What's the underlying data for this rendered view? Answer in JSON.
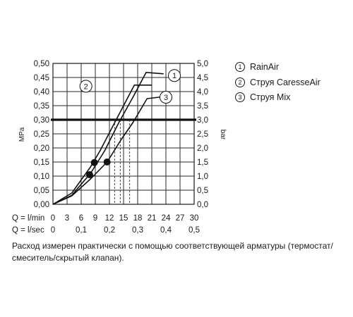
{
  "chart_data": {
    "type": "line",
    "y_left": {
      "unit": "MPa",
      "ticks": [
        "0,00",
        "0,05",
        "0,10",
        "0,15",
        "0,20",
        "0,25",
        "0,30",
        "0,35",
        "0,40",
        "0,45",
        "0,50"
      ],
      "range": [
        0,
        0.5
      ]
    },
    "y_right": {
      "unit": "bar",
      "ticks": [
        "0,0",
        "0,5",
        "1,0",
        "1,5",
        "2,0",
        "2,5",
        "3,0",
        "3,5",
        "4,0",
        "4,5",
        "5,0"
      ],
      "range": [
        0,
        5
      ]
    },
    "x": {
      "range": [
        0,
        30
      ],
      "rows": [
        {
          "label": "Q = l/min",
          "ticks": [
            "0",
            "3",
            "6",
            "9",
            "12",
            "15",
            "18",
            "21",
            "24",
            "27",
            "30"
          ]
        },
        {
          "label": "Q = l/sec",
          "ticks": [
            "0",
            "0,1",
            "0,2",
            "0,3",
            "0,4",
            "0,5"
          ]
        }
      ]
    },
    "reference_pressure_mpa": 0.3,
    "series": [
      {
        "id": "1",
        "name": "RainAir",
        "x": [
          0,
          4,
          8,
          11,
          14,
          17,
          19.8,
          23.5
        ],
        "y": [
          0,
          0.032,
          0.11,
          0.19,
          0.29,
          0.38,
          0.468,
          0.463
        ]
      },
      {
        "id": "2",
        "name": "Струя CaresseAir",
        "x": [
          0,
          4,
          8,
          10,
          12.5,
          15,
          17.3,
          19.5,
          21
        ],
        "y": [
          0,
          0.04,
          0.133,
          0.19,
          0.27,
          0.35,
          0.423,
          0.423,
          0.423
        ]
      },
      {
        "id": "3",
        "name": "Струя Mix",
        "x": [
          0,
          4,
          8,
          11.5,
          14.5,
          17,
          20,
          22.5,
          23.4
        ],
        "y": [
          0,
          0.03,
          0.09,
          0.15,
          0.23,
          0.29,
          0.375,
          0.38,
          0.38
        ]
      }
    ],
    "markers": [
      {
        "x": 7.8,
        "y": 0.105
      },
      {
        "x": 8.8,
        "y": 0.148
      },
      {
        "x": 11.5,
        "y": 0.15
      }
    ],
    "crossings_l_min": [
      13.1,
      14.3,
      16.3
    ],
    "grid": true,
    "legend_position": "right"
  },
  "legend": [
    {
      "num": "1",
      "label": "RainAir"
    },
    {
      "num": "2",
      "label": "Струя CaresseAir"
    },
    {
      "num": "3",
      "label": "Струя Mix"
    }
  ],
  "note": "Расход измерен практически с помощью соответствующей арматуры (термостат/смеситель/скрытый клапан)."
}
